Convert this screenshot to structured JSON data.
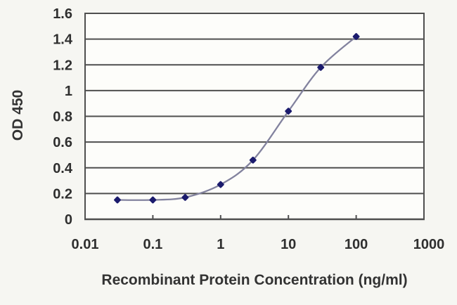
{
  "page": {
    "background_color": "#f6f6f2",
    "description": "ELISA standard curve chart"
  },
  "chart_data": {
    "type": "line",
    "title": "",
    "xlabel": "Recombinant Protein Concentration (ng/ml)",
    "ylabel": "OD 450",
    "x_scale": "log",
    "xlim": [
      0.01,
      1000
    ],
    "ylim": [
      0,
      1.6
    ],
    "x": [
      0.03,
      0.1,
      0.3,
      1,
      3,
      10,
      30,
      100
    ],
    "y": [
      0.15,
      0.15,
      0.17,
      0.27,
      0.46,
      0.84,
      1.18,
      1.42
    ],
    "x_ticks": [
      0.01,
      0.1,
      1,
      10,
      100,
      1000
    ],
    "x_tick_labels": [
      "0.01",
      "0.1",
      "1",
      "10",
      "100",
      "1000"
    ],
    "y_ticks": [
      0,
      0.2,
      0.4,
      0.6,
      0.8,
      1,
      1.2,
      1.4,
      1.6
    ],
    "y_tick_labels": [
      "0",
      "0.2",
      "0.4",
      "0.6",
      "0.8",
      "1",
      "1.2",
      "1.4",
      "1.6"
    ],
    "grid": "horizontal",
    "legend": "none",
    "marker": "diamond",
    "colors": {
      "line": "#82829e",
      "marker": "#1b1b6d",
      "grid": "#4f4f4f",
      "axis": "#4f4f4f",
      "tick_text": "#2f2f2f",
      "label_text": "#333333",
      "plot_background": "#fdfdfa"
    }
  }
}
